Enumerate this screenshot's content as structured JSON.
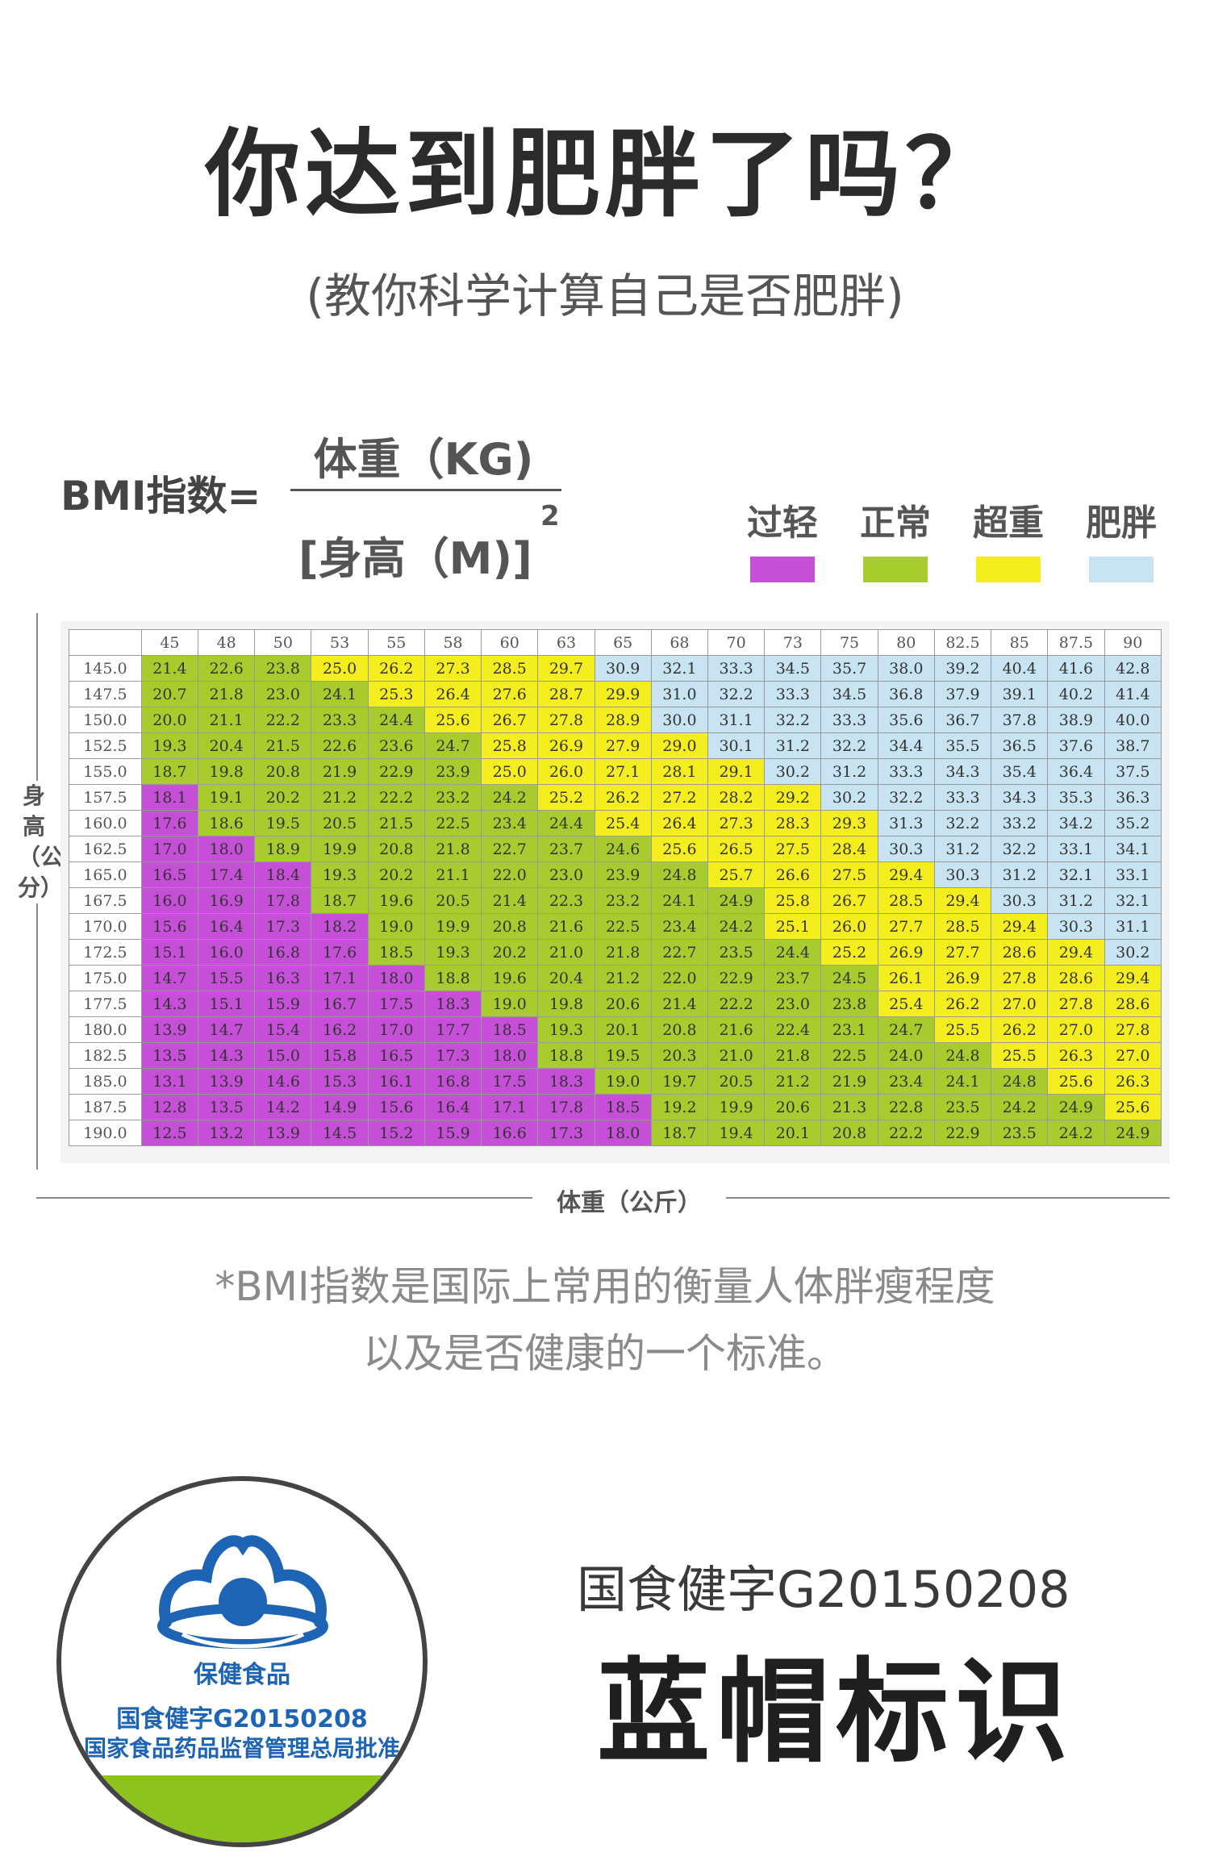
{
  "header": {
    "title": "你达到肥胖了吗？",
    "subtitle": "(教你科学计算自己是否肥胖)"
  },
  "formula": {
    "label": "BMI指数=",
    "numerator": "体重（KG)",
    "denominator": "[身高（M)]",
    "exponent": "2"
  },
  "legend": [
    {
      "label": "过轻",
      "color": "#c64fd8"
    },
    {
      "label": "正常",
      "color": "#a8cc2e"
    },
    {
      "label": "超重",
      "color": "#f4ee1e"
    },
    {
      "label": "肥胖",
      "color": "#c8e4f2"
    }
  ],
  "chart_data": {
    "type": "table",
    "y_axis_label": "身高（公分）",
    "x_axis_label": "体重（公斤）",
    "weights": [
      "45",
      "48",
      "50",
      "53",
      "55",
      "58",
      "60",
      "63",
      "65",
      "68",
      "70",
      "73",
      "75",
      "80",
      "82.5",
      "85",
      "87.5",
      "90"
    ],
    "rows": [
      {
        "height": "145.0",
        "values": [
          "21.4",
          "22.6",
          "23.8",
          "25.0",
          "26.2",
          "27.3",
          "28.5",
          "29.7",
          "30.9",
          "32.1",
          "33.3",
          "34.5",
          "35.7",
          "38.0",
          "39.2",
          "40.4",
          "41.6",
          "42.8"
        ],
        "categories": [
          1,
          1,
          1,
          2,
          2,
          2,
          2,
          2,
          3,
          3,
          3,
          3,
          3,
          3,
          3,
          3,
          3,
          3
        ]
      },
      {
        "height": "147.5",
        "values": [
          "20.7",
          "21.8",
          "23.0",
          "24.1",
          "25.3",
          "26.4",
          "27.6",
          "28.7",
          "29.9",
          "31.0",
          "32.2",
          "33.3",
          "34.5",
          "36.8",
          "37.9",
          "39.1",
          "40.2",
          "41.4"
        ],
        "categories": [
          1,
          1,
          1,
          1,
          2,
          2,
          2,
          2,
          2,
          3,
          3,
          3,
          3,
          3,
          3,
          3,
          3,
          3
        ]
      },
      {
        "height": "150.0",
        "values": [
          "20.0",
          "21.1",
          "22.2",
          "23.3",
          "24.4",
          "25.6",
          "26.7",
          "27.8",
          "28.9",
          "30.0",
          "31.1",
          "32.2",
          "33.3",
          "35.6",
          "36.7",
          "37.8",
          "38.9",
          "40.0"
        ],
        "categories": [
          1,
          1,
          1,
          1,
          1,
          2,
          2,
          2,
          2,
          3,
          3,
          3,
          3,
          3,
          3,
          3,
          3,
          3
        ]
      },
      {
        "height": "152.5",
        "values": [
          "19.3",
          "20.4",
          "21.5",
          "22.6",
          "23.6",
          "24.7",
          "25.8",
          "26.9",
          "27.9",
          "29.0",
          "30.1",
          "31.2",
          "32.2",
          "34.4",
          "35.5",
          "36.5",
          "37.6",
          "38.7"
        ],
        "categories": [
          1,
          1,
          1,
          1,
          1,
          1,
          2,
          2,
          2,
          2,
          3,
          3,
          3,
          3,
          3,
          3,
          3,
          3
        ]
      },
      {
        "height": "155.0",
        "values": [
          "18.7",
          "19.8",
          "20.8",
          "21.9",
          "22.9",
          "23.9",
          "25.0",
          "26.0",
          "27.1",
          "28.1",
          "29.1",
          "30.2",
          "31.2",
          "33.3",
          "34.3",
          "35.4",
          "36.4",
          "37.5"
        ],
        "categories": [
          1,
          1,
          1,
          1,
          1,
          1,
          2,
          2,
          2,
          2,
          2,
          3,
          3,
          3,
          3,
          3,
          3,
          3
        ]
      },
      {
        "height": "157.5",
        "values": [
          "18.1",
          "19.1",
          "20.2",
          "21.2",
          "22.2",
          "23.2",
          "24.2",
          "25.2",
          "26.2",
          "27.2",
          "28.2",
          "29.2",
          "30.2",
          "32.2",
          "33.3",
          "34.3",
          "35.3",
          "36.3"
        ],
        "categories": [
          0,
          1,
          1,
          1,
          1,
          1,
          1,
          2,
          2,
          2,
          2,
          2,
          3,
          3,
          3,
          3,
          3,
          3
        ]
      },
      {
        "height": "160.0",
        "values": [
          "17.6",
          "18.6",
          "19.5",
          "20.5",
          "21.5",
          "22.5",
          "23.4",
          "24.4",
          "25.4",
          "26.4",
          "27.3",
          "28.3",
          "29.3",
          "31.3",
          "32.2",
          "33.2",
          "34.2",
          "35.2"
        ],
        "categories": [
          0,
          1,
          1,
          1,
          1,
          1,
          1,
          1,
          2,
          2,
          2,
          2,
          2,
          3,
          3,
          3,
          3,
          3
        ]
      },
      {
        "height": "162.5",
        "values": [
          "17.0",
          "18.0",
          "18.9",
          "19.9",
          "20.8",
          "21.8",
          "22.7",
          "23.7",
          "24.6",
          "25.6",
          "26.5",
          "27.5",
          "28.4",
          "30.3",
          "31.2",
          "32.2",
          "33.1",
          "34.1"
        ],
        "categories": [
          0,
          0,
          1,
          1,
          1,
          1,
          1,
          1,
          1,
          2,
          2,
          2,
          2,
          3,
          3,
          3,
          3,
          3
        ]
      },
      {
        "height": "165.0",
        "values": [
          "16.5",
          "17.4",
          "18.4",
          "19.3",
          "20.2",
          "21.1",
          "22.0",
          "23.0",
          "23.9",
          "24.8",
          "25.7",
          "26.6",
          "27.5",
          "29.4",
          "30.3",
          "31.2",
          "32.1",
          "33.1"
        ],
        "categories": [
          0,
          0,
          0,
          1,
          1,
          1,
          1,
          1,
          1,
          1,
          2,
          2,
          2,
          2,
          3,
          3,
          3,
          3
        ]
      },
      {
        "height": "167.5",
        "values": [
          "16.0",
          "16.9",
          "17.8",
          "18.7",
          "19.6",
          "20.5",
          "21.4",
          "22.3",
          "23.2",
          "24.1",
          "24.9",
          "25.8",
          "26.7",
          "28.5",
          "29.4",
          "30.3",
          "31.2",
          "32.1"
        ],
        "categories": [
          0,
          0,
          0,
          1,
          1,
          1,
          1,
          1,
          1,
          1,
          1,
          2,
          2,
          2,
          2,
          3,
          3,
          3
        ]
      },
      {
        "height": "170.0",
        "values": [
          "15.6",
          "16.4",
          "17.3",
          "18.2",
          "19.0",
          "19.9",
          "20.8",
          "21.6",
          "22.5",
          "23.4",
          "24.2",
          "25.1",
          "26.0",
          "27.7",
          "28.5",
          "29.4",
          "30.3",
          "31.1"
        ],
        "categories": [
          0,
          0,
          0,
          0,
          1,
          1,
          1,
          1,
          1,
          1,
          1,
          2,
          2,
          2,
          2,
          2,
          3,
          3
        ]
      },
      {
        "height": "172.5",
        "values": [
          "15.1",
          "16.0",
          "16.8",
          "17.6",
          "18.5",
          "19.3",
          "20.2",
          "21.0",
          "21.8",
          "22.7",
          "23.5",
          "24.4",
          "25.2",
          "26.9",
          "27.7",
          "28.6",
          "29.4",
          "30.2"
        ],
        "categories": [
          0,
          0,
          0,
          0,
          1,
          1,
          1,
          1,
          1,
          1,
          1,
          1,
          2,
          2,
          2,
          2,
          2,
          3
        ]
      },
      {
        "height": "175.0",
        "values": [
          "14.7",
          "15.5",
          "16.3",
          "17.1",
          "18.0",
          "18.8",
          "19.6",
          "20.4",
          "21.2",
          "22.0",
          "22.9",
          "23.7",
          "24.5",
          "26.1",
          "26.9",
          "27.8",
          "28.6",
          "29.4"
        ],
        "categories": [
          0,
          0,
          0,
          0,
          0,
          1,
          1,
          1,
          1,
          1,
          1,
          1,
          1,
          2,
          2,
          2,
          2,
          2
        ]
      },
      {
        "height": "177.5",
        "values": [
          "14.3",
          "15.1",
          "15.9",
          "16.7",
          "17.5",
          "18.3",
          "19.0",
          "19.8",
          "20.6",
          "21.4",
          "22.2",
          "23.0",
          "23.8",
          "25.4",
          "26.2",
          "27.0",
          "27.8",
          "28.6"
        ],
        "categories": [
          0,
          0,
          0,
          0,
          0,
          0,
          1,
          1,
          1,
          1,
          1,
          1,
          1,
          2,
          2,
          2,
          2,
          2
        ]
      },
      {
        "height": "180.0",
        "values": [
          "13.9",
          "14.7",
          "15.4",
          "16.2",
          "17.0",
          "17.7",
          "18.5",
          "19.3",
          "20.1",
          "20.8",
          "21.6",
          "22.4",
          "23.1",
          "24.7",
          "25.5",
          "26.2",
          "27.0",
          "27.8"
        ],
        "categories": [
          0,
          0,
          0,
          0,
          0,
          0,
          0,
          1,
          1,
          1,
          1,
          1,
          1,
          1,
          2,
          2,
          2,
          2
        ]
      },
      {
        "height": "182.5",
        "values": [
          "13.5",
          "14.3",
          "15.0",
          "15.8",
          "16.5",
          "17.3",
          "18.0",
          "18.8",
          "19.5",
          "20.3",
          "21.0",
          "21.8",
          "22.5",
          "24.0",
          "24.8",
          "25.5",
          "26.3",
          "27.0"
        ],
        "categories": [
          0,
          0,
          0,
          0,
          0,
          0,
          0,
          1,
          1,
          1,
          1,
          1,
          1,
          1,
          1,
          2,
          2,
          2
        ]
      },
      {
        "height": "185.0",
        "values": [
          "13.1",
          "13.9",
          "14.6",
          "15.3",
          "16.1",
          "16.8",
          "17.5",
          "18.3",
          "19.0",
          "19.7",
          "20.5",
          "21.2",
          "21.9",
          "23.4",
          "24.1",
          "24.8",
          "25.6",
          "26.3"
        ],
        "categories": [
          0,
          0,
          0,
          0,
          0,
          0,
          0,
          0,
          1,
          1,
          1,
          1,
          1,
          1,
          1,
          1,
          2,
          2
        ]
      },
      {
        "height": "187.5",
        "values": [
          "12.8",
          "13.5",
          "14.2",
          "14.9",
          "15.6",
          "16.4",
          "17.1",
          "17.8",
          "18.5",
          "19.2",
          "19.9",
          "20.6",
          "21.3",
          "22.8",
          "23.5",
          "24.2",
          "24.9",
          "25.6"
        ],
        "categories": [
          0,
          0,
          0,
          0,
          0,
          0,
          0,
          0,
          0,
          1,
          1,
          1,
          1,
          1,
          1,
          1,
          1,
          2
        ]
      },
      {
        "height": "190.0",
        "values": [
          "12.5",
          "13.2",
          "13.9",
          "14.5",
          "15.2",
          "15.9",
          "16.6",
          "17.3",
          "18.0",
          "18.7",
          "19.4",
          "20.1",
          "20.8",
          "22.2",
          "22.9",
          "23.5",
          "24.2",
          "24.9"
        ],
        "categories": [
          0,
          0,
          0,
          0,
          0,
          0,
          0,
          0,
          0,
          1,
          1,
          1,
          1,
          1,
          1,
          1,
          1,
          1
        ]
      }
    ]
  },
  "notes": {
    "line1": "*BMI指数是国际上常用的衡量人体胖瘦程度",
    "line2": "以及是否健康的一个标准。"
  },
  "badge": {
    "name": "保健食品",
    "code": "国食健字G20150208",
    "approval": "国家食品药品监督管理总局批准",
    "logo_color": "#1e64b4",
    "band_color": "#8dc21f",
    "icon": "blue-hat-icon"
  },
  "certification": {
    "code": "国食健字G20150208",
    "title": "蓝帽标识"
  }
}
